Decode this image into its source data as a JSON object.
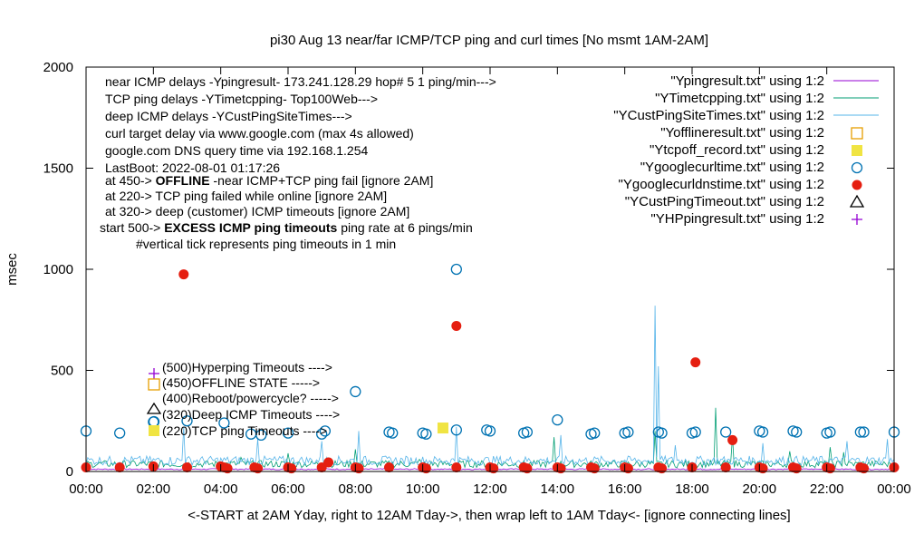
{
  "chart_data": {
    "type": "scatter",
    "title": "pi30 Aug 13  near/far ICMP/TCP ping and curl times [No msmt 1AM-2AM]",
    "xlabel": "<-START at 2AM Yday, right to 12AM Tday->, then wrap left to 1AM Tday<- [ignore connecting lines]",
    "ylabel": "msec",
    "xlim": [
      0,
      24
    ],
    "ylim": [
      0,
      2000
    ],
    "x_ticks": [
      "00:00",
      "02:00",
      "04:00",
      "06:00",
      "08:00",
      "10:00",
      "12:00",
      "14:00",
      "16:00",
      "18:00",
      "20:00",
      "22:00",
      "00:00"
    ],
    "y_ticks": [
      "0",
      "500",
      "1000",
      "1500",
      "2000"
    ],
    "grid": false,
    "legend_position": "top-right",
    "info_lines": [
      "near ICMP delays -Ypingresult- 173.241.128.29 hop# 5 1 ping/min--->",
      "TCP ping delays -YTimetcpping- Top100Web--->",
      "deep ICMP delays -YCustPingSiteTimes--->",
      "curl target delay via www.google.com (max 4s allowed)",
      "google.com DNS query time via 192.168.1.254",
      "LastBoot: 2022-08-01 01:17:26"
    ],
    "offline_prefix": "at 450-> ",
    "offline_bold": "OFFLINE",
    "offline_suffix": " -near ICMP+TCP ping fail [ignore 2AM]",
    "tcp_fail_note": "at 220-> TCP ping failed while online [ignore 2AM]",
    "deep_timeout_note": "at 320-> deep (customer) ICMP timeouts [ignore 2AM]",
    "excess_prefix": "start 500-> ",
    "excess_bold": "EXCESS ICMP ping timeouts",
    "excess_suffix": "  ping rate at 6 pings/min",
    "tick_note": "#vertical tick represents ping timeouts in 1 min",
    "key_labels": [
      "(500)Hyperping Timeouts ---->",
      "(450)OFFLINE STATE ----->",
      "(400)Reboot/powercycle? ----->",
      "(320)Deep ICMP Timeouts ---->",
      "(220)TCP ping Timeouts ---->"
    ],
    "legend": [
      {
        "label": "\"Ypingresult.txt\" using 1:2",
        "style": "line",
        "color": "#9400d3"
      },
      {
        "label": "\"YTimetcpping.txt\" using 1:2",
        "style": "line",
        "color": "#009e73"
      },
      {
        "label": "\"YCustPingSiteTimes.txt\" using 1:2",
        "style": "line",
        "color": "#56b4e9"
      },
      {
        "label": "\"Yofflineresult.txt\" using 1:2",
        "style": "open-square",
        "color": "#e69f00"
      },
      {
        "label": "\"Ytcpoff_record.txt\" using 1:2",
        "style": "filled-square",
        "color": "#f0e442"
      },
      {
        "label": "\"Ygooglecurltime.txt\" using 1:2",
        "style": "open-circle",
        "color": "#0072b2"
      },
      {
        "label": "\"Ygooglecurldnstime.txt\" using 1:2",
        "style": "filled-circle",
        "color": "#e51e10"
      },
      {
        "label": "\"YCustPingTimeout.txt\" using 1:2",
        "style": "open-triangle",
        "color": "#000000"
      },
      {
        "label": "\"YHPpingresult.txt\" using 1:2",
        "style": "plus",
        "color": "#9400d3"
      }
    ],
    "series": [
      {
        "name": "\"Ypingresult.txt\" using 1:2",
        "kind": "line",
        "baseline": 10,
        "noise": 6
      },
      {
        "name": "\"YTimetcpping.txt\" using 1:2",
        "kind": "line",
        "baseline": 30,
        "noise": 35,
        "spikes": [
          [
            4.6,
            70
          ],
          [
            6.0,
            90
          ],
          [
            8.0,
            110
          ],
          [
            9.9,
            60
          ],
          [
            13.9,
            170
          ],
          [
            16.9,
            200
          ],
          [
            18.7,
            315
          ],
          [
            19.2,
            175
          ],
          [
            20.9,
            100
          ],
          [
            22.1,
            120
          ],
          [
            22.5,
            95
          ]
        ]
      },
      {
        "name": "\"YCustPingSiteTimes.txt\" using 1:2",
        "kind": "line",
        "baseline": 45,
        "noise": 45,
        "spikes": [
          [
            2.9,
            220
          ],
          [
            5.1,
            160
          ],
          [
            7.0,
            150
          ],
          [
            8.1,
            200
          ],
          [
            11.0,
            220
          ],
          [
            14.1,
            180
          ],
          [
            16.9,
            820
          ],
          [
            17.0,
            520
          ],
          [
            17.5,
            130
          ],
          [
            20.1,
            140
          ],
          [
            22.6,
            150
          ],
          [
            23.8,
            160
          ]
        ]
      },
      {
        "name": "\"Ytcpoff_record.txt\" using 1:2",
        "kind": "filled-square",
        "points": [
          [
            10.6,
            215
          ]
        ]
      },
      {
        "name": "\"Ygooglecurltime.txt\" using 1:2",
        "kind": "open-circle",
        "points": [
          [
            0.0,
            200
          ],
          [
            1.0,
            190
          ],
          [
            2.0,
            245
          ],
          [
            3.0,
            250
          ],
          [
            4.1,
            240
          ],
          [
            4.9,
            185
          ],
          [
            5.2,
            180
          ],
          [
            6.0,
            190
          ],
          [
            7.0,
            185
          ],
          [
            7.1,
            200
          ],
          [
            8.0,
            395
          ],
          [
            9.0,
            195
          ],
          [
            9.1,
            190
          ],
          [
            10.0,
            190
          ],
          [
            10.1,
            185
          ],
          [
            11.0,
            1000
          ],
          [
            11.0,
            205
          ],
          [
            11.9,
            205
          ],
          [
            12.0,
            200
          ],
          [
            13.0,
            190
          ],
          [
            13.1,
            195
          ],
          [
            14.0,
            255
          ],
          [
            15.0,
            185
          ],
          [
            15.1,
            190
          ],
          [
            16.0,
            190
          ],
          [
            16.1,
            195
          ],
          [
            17.0,
            195
          ],
          [
            17.1,
            190
          ],
          [
            18.0,
            190
          ],
          [
            18.1,
            195
          ],
          [
            19.0,
            195
          ],
          [
            20.0,
            200
          ],
          [
            20.1,
            195
          ],
          [
            21.0,
            200
          ],
          [
            21.1,
            195
          ],
          [
            22.0,
            190
          ],
          [
            22.1,
            195
          ],
          [
            23.0,
            195
          ],
          [
            23.1,
            195
          ],
          [
            24.0,
            195
          ]
        ]
      },
      {
        "name": "\"Ygooglecurldnstime.txt\" using 1:2",
        "kind": "filled-circle",
        "points": [
          [
            0.0,
            20
          ],
          [
            1.0,
            20
          ],
          [
            2.0,
            25
          ],
          [
            2.9,
            975
          ],
          [
            3.0,
            20
          ],
          [
            4.0,
            25
          ],
          [
            4.1,
            20
          ],
          [
            4.2,
            15
          ],
          [
            5.0,
            20
          ],
          [
            5.1,
            15
          ],
          [
            6.0,
            20
          ],
          [
            6.1,
            15
          ],
          [
            7.0,
            20
          ],
          [
            7.2,
            45
          ],
          [
            8.0,
            20
          ],
          [
            8.1,
            15
          ],
          [
            9.0,
            20
          ],
          [
            10.0,
            20
          ],
          [
            10.1,
            15
          ],
          [
            11.0,
            720
          ],
          [
            11.0,
            20
          ],
          [
            12.0,
            20
          ],
          [
            12.1,
            15
          ],
          [
            13.0,
            20
          ],
          [
            13.1,
            15
          ],
          [
            14.0,
            20
          ],
          [
            14.1,
            15
          ],
          [
            15.0,
            20
          ],
          [
            15.1,
            15
          ],
          [
            16.0,
            20
          ],
          [
            16.1,
            15
          ],
          [
            17.0,
            20
          ],
          [
            17.1,
            15
          ],
          [
            18.0,
            20
          ],
          [
            18.1,
            540
          ],
          [
            19.0,
            20
          ],
          [
            19.2,
            155
          ],
          [
            20.0,
            20
          ],
          [
            20.1,
            15
          ],
          [
            21.0,
            20
          ],
          [
            21.1,
            15
          ],
          [
            22.0,
            20
          ],
          [
            22.1,
            15
          ],
          [
            23.0,
            20
          ],
          [
            23.1,
            15
          ],
          [
            24.0,
            20
          ]
        ]
      }
    ]
  }
}
